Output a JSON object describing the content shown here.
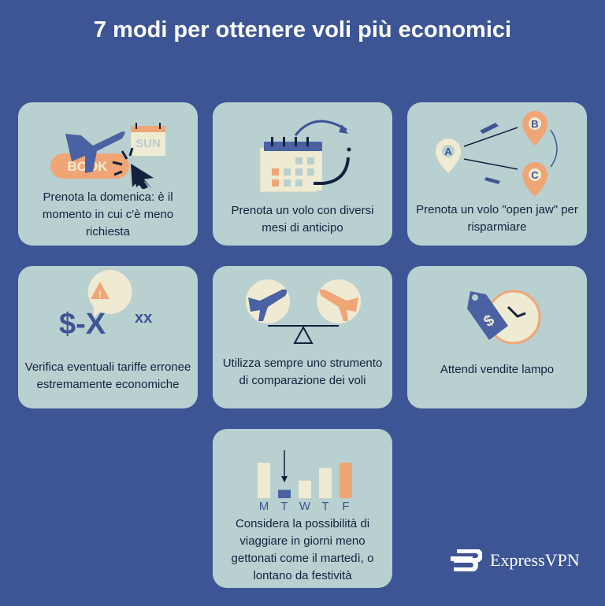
{
  "title": "7 modi per ottenere voli più economici",
  "cards": [
    {
      "text": "Prenota la domenica: è il momento in cui c'è meno richiesta",
      "icon": "plane-book-button-icon",
      "labels": {
        "button": "BOOK",
        "calendar": "SUN"
      }
    },
    {
      "text": "Prenota un volo con diversi mesi di anticipo",
      "icon": "calendar-arrow-icon"
    },
    {
      "text": "Prenota un volo \"open jaw\" per risparmiare",
      "icon": "map-pins-route-icon",
      "labels": {
        "a": "A",
        "b": "B",
        "c": "C"
      }
    },
    {
      "text": "Verifica eventuali tariffe erronee estremamente economiche",
      "icon": "warning-price-icon",
      "labels": {
        "price": "$-X",
        "sup": "xx"
      }
    },
    {
      "text": "Utilizza sempre uno strumento di comparazione dei voli",
      "icon": "scale-planes-icon"
    },
    {
      "text": "Attendi vendite lampo",
      "icon": "price-tag-clock-icon"
    },
    {
      "text": "Considera la possibilità di viaggiare in giorni meno gettonati come il martedì, o lontano da festività",
      "icon": "weekday-bars-icon",
      "days": [
        "M",
        "T",
        "W",
        "T",
        "F"
      ],
      "bar_levels": [
        0.85,
        0.2,
        0.42,
        0.72,
        0.85
      ]
    }
  ],
  "logo": "ExpressVPN",
  "colors": {
    "background": "#3d5595",
    "card": "#b8d0d0",
    "accent": "#f0a577",
    "text": "#14213d",
    "cream": "#efead2"
  }
}
